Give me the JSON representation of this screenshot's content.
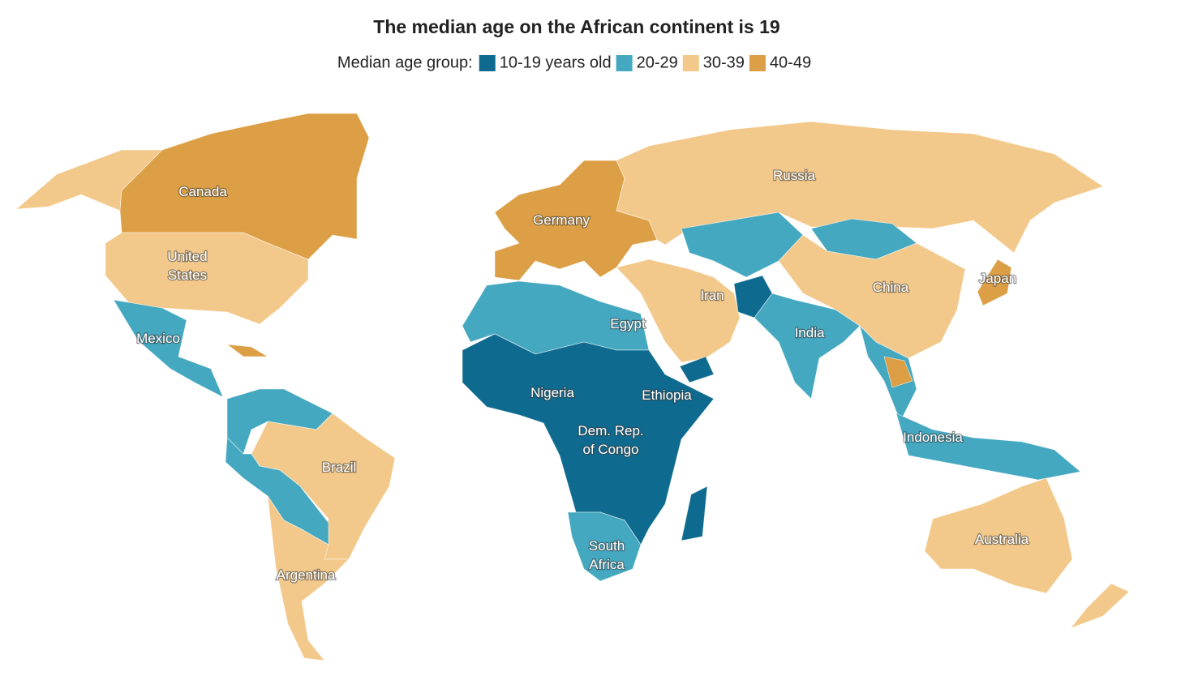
{
  "title": "The median age on the African continent is 19",
  "legend": {
    "label": "Median age group:",
    "items": [
      {
        "name": "10-19 years old",
        "color": "#0e6a8f"
      },
      {
        "name": "20-29",
        "color": "#45a8c1"
      },
      {
        "name": "30-39",
        "color": "#f3c98b"
      },
      {
        "name": "40-49",
        "color": "#dc9f45"
      }
    ]
  },
  "labels": [
    {
      "lines": [
        "Canada"
      ]
    },
    {
      "lines": [
        "United",
        "States"
      ]
    },
    {
      "lines": [
        "Mexico"
      ]
    },
    {
      "lines": [
        "Brazil"
      ]
    },
    {
      "lines": [
        "Argentina"
      ]
    },
    {
      "lines": [
        "Germany"
      ]
    },
    {
      "lines": [
        "Russia"
      ]
    },
    {
      "lines": [
        "China"
      ]
    },
    {
      "lines": [
        "Japan"
      ]
    },
    {
      "lines": [
        "Iran"
      ]
    },
    {
      "lines": [
        "India"
      ]
    },
    {
      "lines": [
        "Egypt"
      ]
    },
    {
      "lines": [
        "Nigeria"
      ]
    },
    {
      "lines": [
        "Ethiopia"
      ]
    },
    {
      "lines": [
        "Dem. Rep.",
        "of Congo"
      ]
    },
    {
      "lines": [
        "South",
        "Africa"
      ]
    },
    {
      "lines": [
        "Indonesia"
      ]
    },
    {
      "lines": [
        "Australia"
      ]
    }
  ]
}
